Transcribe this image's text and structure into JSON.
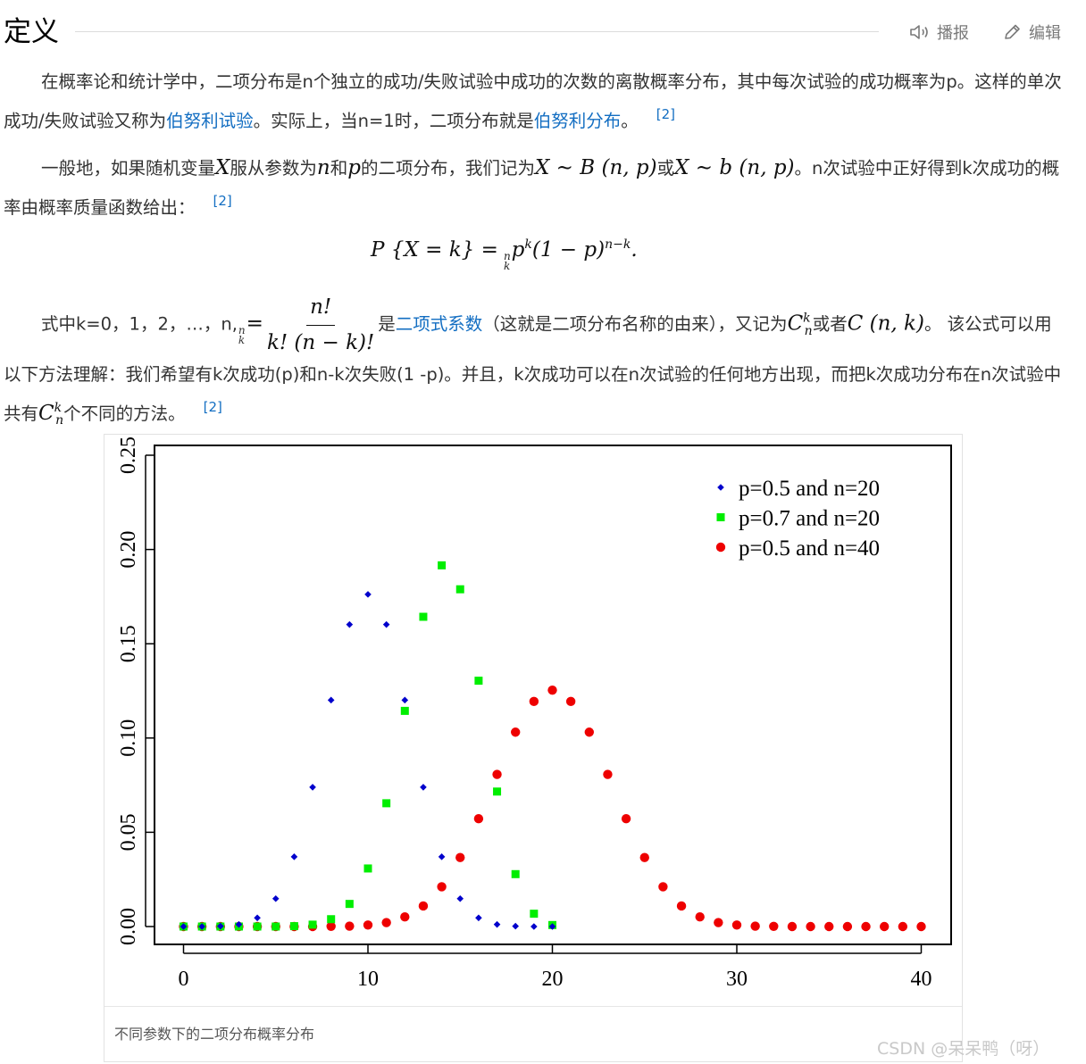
{
  "section": {
    "title": "定义",
    "play_label": "播报",
    "edit_label": "编辑"
  },
  "paragraph1": {
    "text_a": "在概率论和统计学中，二项分布是n个独立的成功/失败试验中成功的次数的离散概率分布，其中每次试验的成功概率为p。这样的单次成功/失败试验又称为",
    "link1": "伯努利试验",
    "text_b": "。实际上，当n=1时，二项分布就是",
    "link2": "伯努利分布",
    "text_c": "。",
    "ref": "[2]"
  },
  "paragraph2": {
    "text_a": "一般地，如果随机变量",
    "var_x": "X",
    "text_b": "服从参数为",
    "var_n": "n",
    "text_c": "和",
    "var_p": "p",
    "text_d": "的二项分布，我们记为",
    "expr1": "X ∼ B (n, p)",
    "text_e": "或",
    "expr2": "X ∼ b (n, p)",
    "text_f": "。n次试验中正好得到k次成功的概率由概率质量函数给出：",
    "ref": "[2]"
  },
  "formula": {
    "lhs": "P {X = k} =",
    "binom_top": "n",
    "binom_bottom": "k",
    "rhs_p": "p",
    "rhs_k": "k",
    "rhs_mid": "(1 − p)",
    "rhs_exp": "n−k",
    "end": "."
  },
  "paragraph3": {
    "text_a": "式中k=0，1，2，…，n,",
    "binom_top": "n",
    "binom_bottom": "k",
    "eq": "=",
    "frac_num": "n!",
    "frac_den": "k! (n − k)!",
    "text_b": "是",
    "link": "二项式系数",
    "text_c": "（这就是二项分布名称的由来），又记为",
    "c_base": "C",
    "c_sup": "k",
    "c_sub": "n",
    "text_d": "或者",
    "c_expr": "C (n, k)",
    "text_e": "。 该公式可以用以下方法理解：我们希望有k次成功(p)和n-k次失败(1 -p)。并且，k次成功可以在n次试验的任何地方出现，而把k次成功分布在n次试验中共有",
    "text_f": "个不同的方法。",
    "ref": "[2]"
  },
  "figure": {
    "caption": "不同参数下的二项分布概率分布"
  },
  "watermark": "CSDN @呆呆鸭（呀）",
  "chart_data": {
    "type": "scatter",
    "xlim": [
      0,
      40
    ],
    "ylim": [
      0,
      0.25
    ],
    "x_ticks": [
      0,
      10,
      20,
      30,
      40
    ],
    "y_ticks": [
      "0.00",
      "0.05",
      "0.10",
      "0.15",
      "0.20",
      "0.25"
    ],
    "legend_position": "top-right",
    "grid": false,
    "series": [
      {
        "name": "p=0.5 and n=20",
        "color": "#0000cc",
        "marker": "diamond",
        "x": [
          0,
          1,
          2,
          3,
          4,
          5,
          6,
          7,
          8,
          9,
          10,
          11,
          12,
          13,
          14,
          15,
          16,
          17,
          18,
          19,
          20
        ],
        "values": [
          0.0,
          0.0,
          0.0002,
          0.0011,
          0.0046,
          0.0148,
          0.037,
          0.0739,
          0.1201,
          0.1602,
          0.1762,
          0.1602,
          0.1201,
          0.0739,
          0.037,
          0.0148,
          0.0046,
          0.0011,
          0.0002,
          0.0,
          0.0
        ]
      },
      {
        "name": "p=0.7 and n=20",
        "color": "#00ee00",
        "marker": "square",
        "x": [
          0,
          1,
          2,
          3,
          4,
          5,
          6,
          7,
          8,
          9,
          10,
          11,
          12,
          13,
          14,
          15,
          16,
          17,
          18,
          19,
          20
        ],
        "values": [
          0.0,
          0.0,
          0.0,
          0.0,
          0.0,
          0.0,
          0.0002,
          0.001,
          0.0039,
          0.012,
          0.0308,
          0.0654,
          0.1144,
          0.1643,
          0.1916,
          0.1789,
          0.1304,
          0.0716,
          0.0278,
          0.0068,
          0.0008
        ]
      },
      {
        "name": "p=0.5 and n=40",
        "color": "#ee0000",
        "marker": "circle",
        "x": [
          0,
          1,
          2,
          3,
          4,
          5,
          6,
          7,
          8,
          9,
          10,
          11,
          12,
          13,
          14,
          15,
          16,
          17,
          18,
          19,
          20,
          21,
          22,
          23,
          24,
          25,
          26,
          27,
          28,
          29,
          30,
          31,
          32,
          33,
          34,
          35,
          36,
          37,
          38,
          39,
          40
        ],
        "values": [
          0.0,
          0.0,
          0.0,
          0.0,
          0.0,
          0.0,
          0.0,
          0.0,
          0.0001,
          0.0002,
          0.0008,
          0.0021,
          0.0051,
          0.0109,
          0.0211,
          0.0366,
          0.0572,
          0.0807,
          0.1031,
          0.1194,
          0.1254,
          0.1194,
          0.1031,
          0.0807,
          0.0572,
          0.0366,
          0.0211,
          0.0109,
          0.0051,
          0.0021,
          0.0008,
          0.0002,
          0.0001,
          0.0,
          0.0,
          0.0,
          0.0,
          0.0,
          0.0,
          0.0,
          0.0
        ]
      }
    ]
  }
}
